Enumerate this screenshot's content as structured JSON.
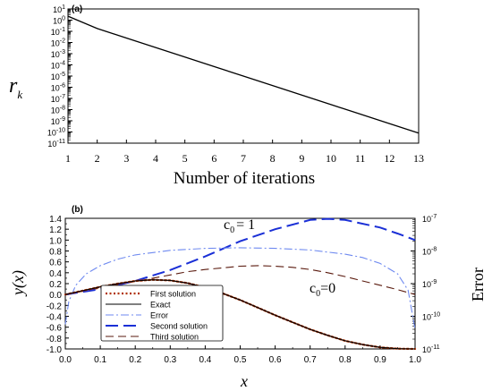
{
  "chart_data": [
    {
      "type": "line",
      "panel_label": "(a)",
      "xlabel": "Number of iterations",
      "ylabel_main": "r",
      "ylabel_sub": "k",
      "x_ticks": [
        "1",
        "2",
        "3",
        "4",
        "5",
        "6",
        "7",
        "8",
        "9",
        "10",
        "11",
        "12",
        "13"
      ],
      "y_tick_exponents": [
        "1",
        "0",
        "-1",
        "-2",
        "-3",
        "-4",
        "-5",
        "-6",
        "-7",
        "-8",
        "-9",
        "-10",
        "-11"
      ],
      "xlim": [
        1,
        13
      ],
      "ylim_log10": [
        -11,
        1
      ],
      "y_scale": "log",
      "series": [
        {
          "color": "#000000",
          "x": [
            1,
            2,
            3,
            4,
            5,
            6,
            7,
            8,
            9,
            10,
            11,
            12,
            13
          ],
          "log10_y": [
            0.35,
            -0.75,
            -1.6,
            -2.45,
            -3.3,
            -4.15,
            -5.0,
            -5.85,
            -6.7,
            -7.55,
            -8.4,
            -9.25,
            -10.1
          ]
        }
      ]
    },
    {
      "type": "line",
      "panel_label": "(b)",
      "xlabel": "x",
      "ylabel": "y(x)",
      "ylabel_right": "Error",
      "xlim": [
        0,
        1
      ],
      "ylim": [
        -1,
        1.4
      ],
      "right_ylim_log10": [
        -11,
        -7
      ],
      "x_ticks": [
        "0.0",
        "0.1",
        "0.2",
        "0.3",
        "0.4",
        "0.5",
        "0.6",
        "0.7",
        "0.8",
        "0.9",
        "1.0"
      ],
      "y_ticks": [
        "1.4",
        "1.2",
        "1.0",
        "0.8",
        "0.6",
        "0.4",
        "0.2",
        "0.0",
        "-0.2",
        "-0.4",
        "-0.6",
        "-0.8",
        "-1.0"
      ],
      "right_tick_exponents": [
        "-7",
        "-8",
        "-9",
        "-10",
        "-11"
      ],
      "annotations": {
        "c0_one": {
          "main": "c",
          "sub": "0",
          "rest": "= 1"
        },
        "c0_zero": {
          "main": "c",
          "sub": "0",
          "rest": "=0"
        }
      },
      "legend": [
        "First solution",
        "Exact",
        "Error",
        "Second solution",
        "Third solution"
      ],
      "legend_placement": "bottom-left",
      "series": [
        {
          "name": "First solution",
          "color": "#b03000",
          "dash": "dotted",
          "x": [
            0,
            0.05,
            0.1,
            0.15,
            0.2,
            0.25,
            0.3,
            0.35,
            0.4,
            0.45,
            0.5,
            0.55,
            0.6,
            0.65,
            0.7,
            0.75,
            0.8,
            0.85,
            0.9,
            0.95,
            1.0
          ],
          "y": [
            0,
            0.07,
            0.14,
            0.2,
            0.25,
            0.27,
            0.26,
            0.21,
            0.13,
            0.02,
            -0.1,
            -0.24,
            -0.38,
            -0.51,
            -0.64,
            -0.75,
            -0.85,
            -0.92,
            -0.97,
            -0.995,
            -1.0
          ]
        },
        {
          "name": "Exact",
          "color": "#000000",
          "dash": "solid",
          "x": [
            0,
            0.05,
            0.1,
            0.15,
            0.2,
            0.25,
            0.3,
            0.35,
            0.4,
            0.45,
            0.5,
            0.55,
            0.6,
            0.65,
            0.7,
            0.75,
            0.8,
            0.85,
            0.9,
            0.95,
            1.0
          ],
          "y": [
            0,
            0.07,
            0.14,
            0.2,
            0.25,
            0.27,
            0.26,
            0.21,
            0.13,
            0.02,
            -0.1,
            -0.24,
            -0.38,
            -0.51,
            -0.64,
            -0.75,
            -0.85,
            -0.92,
            -0.97,
            -0.995,
            -1.0
          ]
        },
        {
          "name": "Error",
          "color": "#6f8af0",
          "dash": "dashdot",
          "axis": "right-log",
          "x": [
            0,
            0.01,
            0.03,
            0.06,
            0.1,
            0.15,
            0.2,
            0.3,
            0.4,
            0.5,
            0.6,
            0.7,
            0.8,
            0.85,
            0.9,
            0.95,
            0.98,
            1.0
          ],
          "log10_y": [
            -10.25,
            -9.55,
            -9.05,
            -8.7,
            -8.45,
            -8.25,
            -8.12,
            -7.98,
            -7.92,
            -7.9,
            -7.92,
            -7.97,
            -8.1,
            -8.2,
            -8.38,
            -8.7,
            -9.2,
            -10.4
          ]
        },
        {
          "name": "Second solution",
          "color": "#1a2fd6",
          "dash": "longdash",
          "x": [
            0,
            0.1,
            0.2,
            0.3,
            0.4,
            0.5,
            0.6,
            0.7,
            0.75,
            0.8,
            0.9,
            0.95,
            1.0
          ],
          "y": [
            0,
            0.1,
            0.25,
            0.45,
            0.7,
            0.98,
            1.2,
            1.37,
            1.39,
            1.37,
            1.23,
            1.12,
            1.0
          ]
        },
        {
          "name": "Third solution",
          "color": "#5a1a0e",
          "dash": "dashed",
          "x": [
            0,
            0.05,
            0.1,
            0.15,
            0.2,
            0.25,
            0.3,
            0.35,
            0.4,
            0.45,
            0.5,
            0.55,
            0.6,
            0.65,
            0.7,
            0.75,
            0.8,
            0.85,
            0.9,
            0.95,
            1.0
          ],
          "y": [
            0,
            0.06,
            0.12,
            0.18,
            0.24,
            0.3,
            0.36,
            0.42,
            0.46,
            0.49,
            0.52,
            0.53,
            0.52,
            0.5,
            0.46,
            0.4,
            0.33,
            0.25,
            0.17,
            0.09,
            0.0
          ]
        }
      ]
    }
  ]
}
